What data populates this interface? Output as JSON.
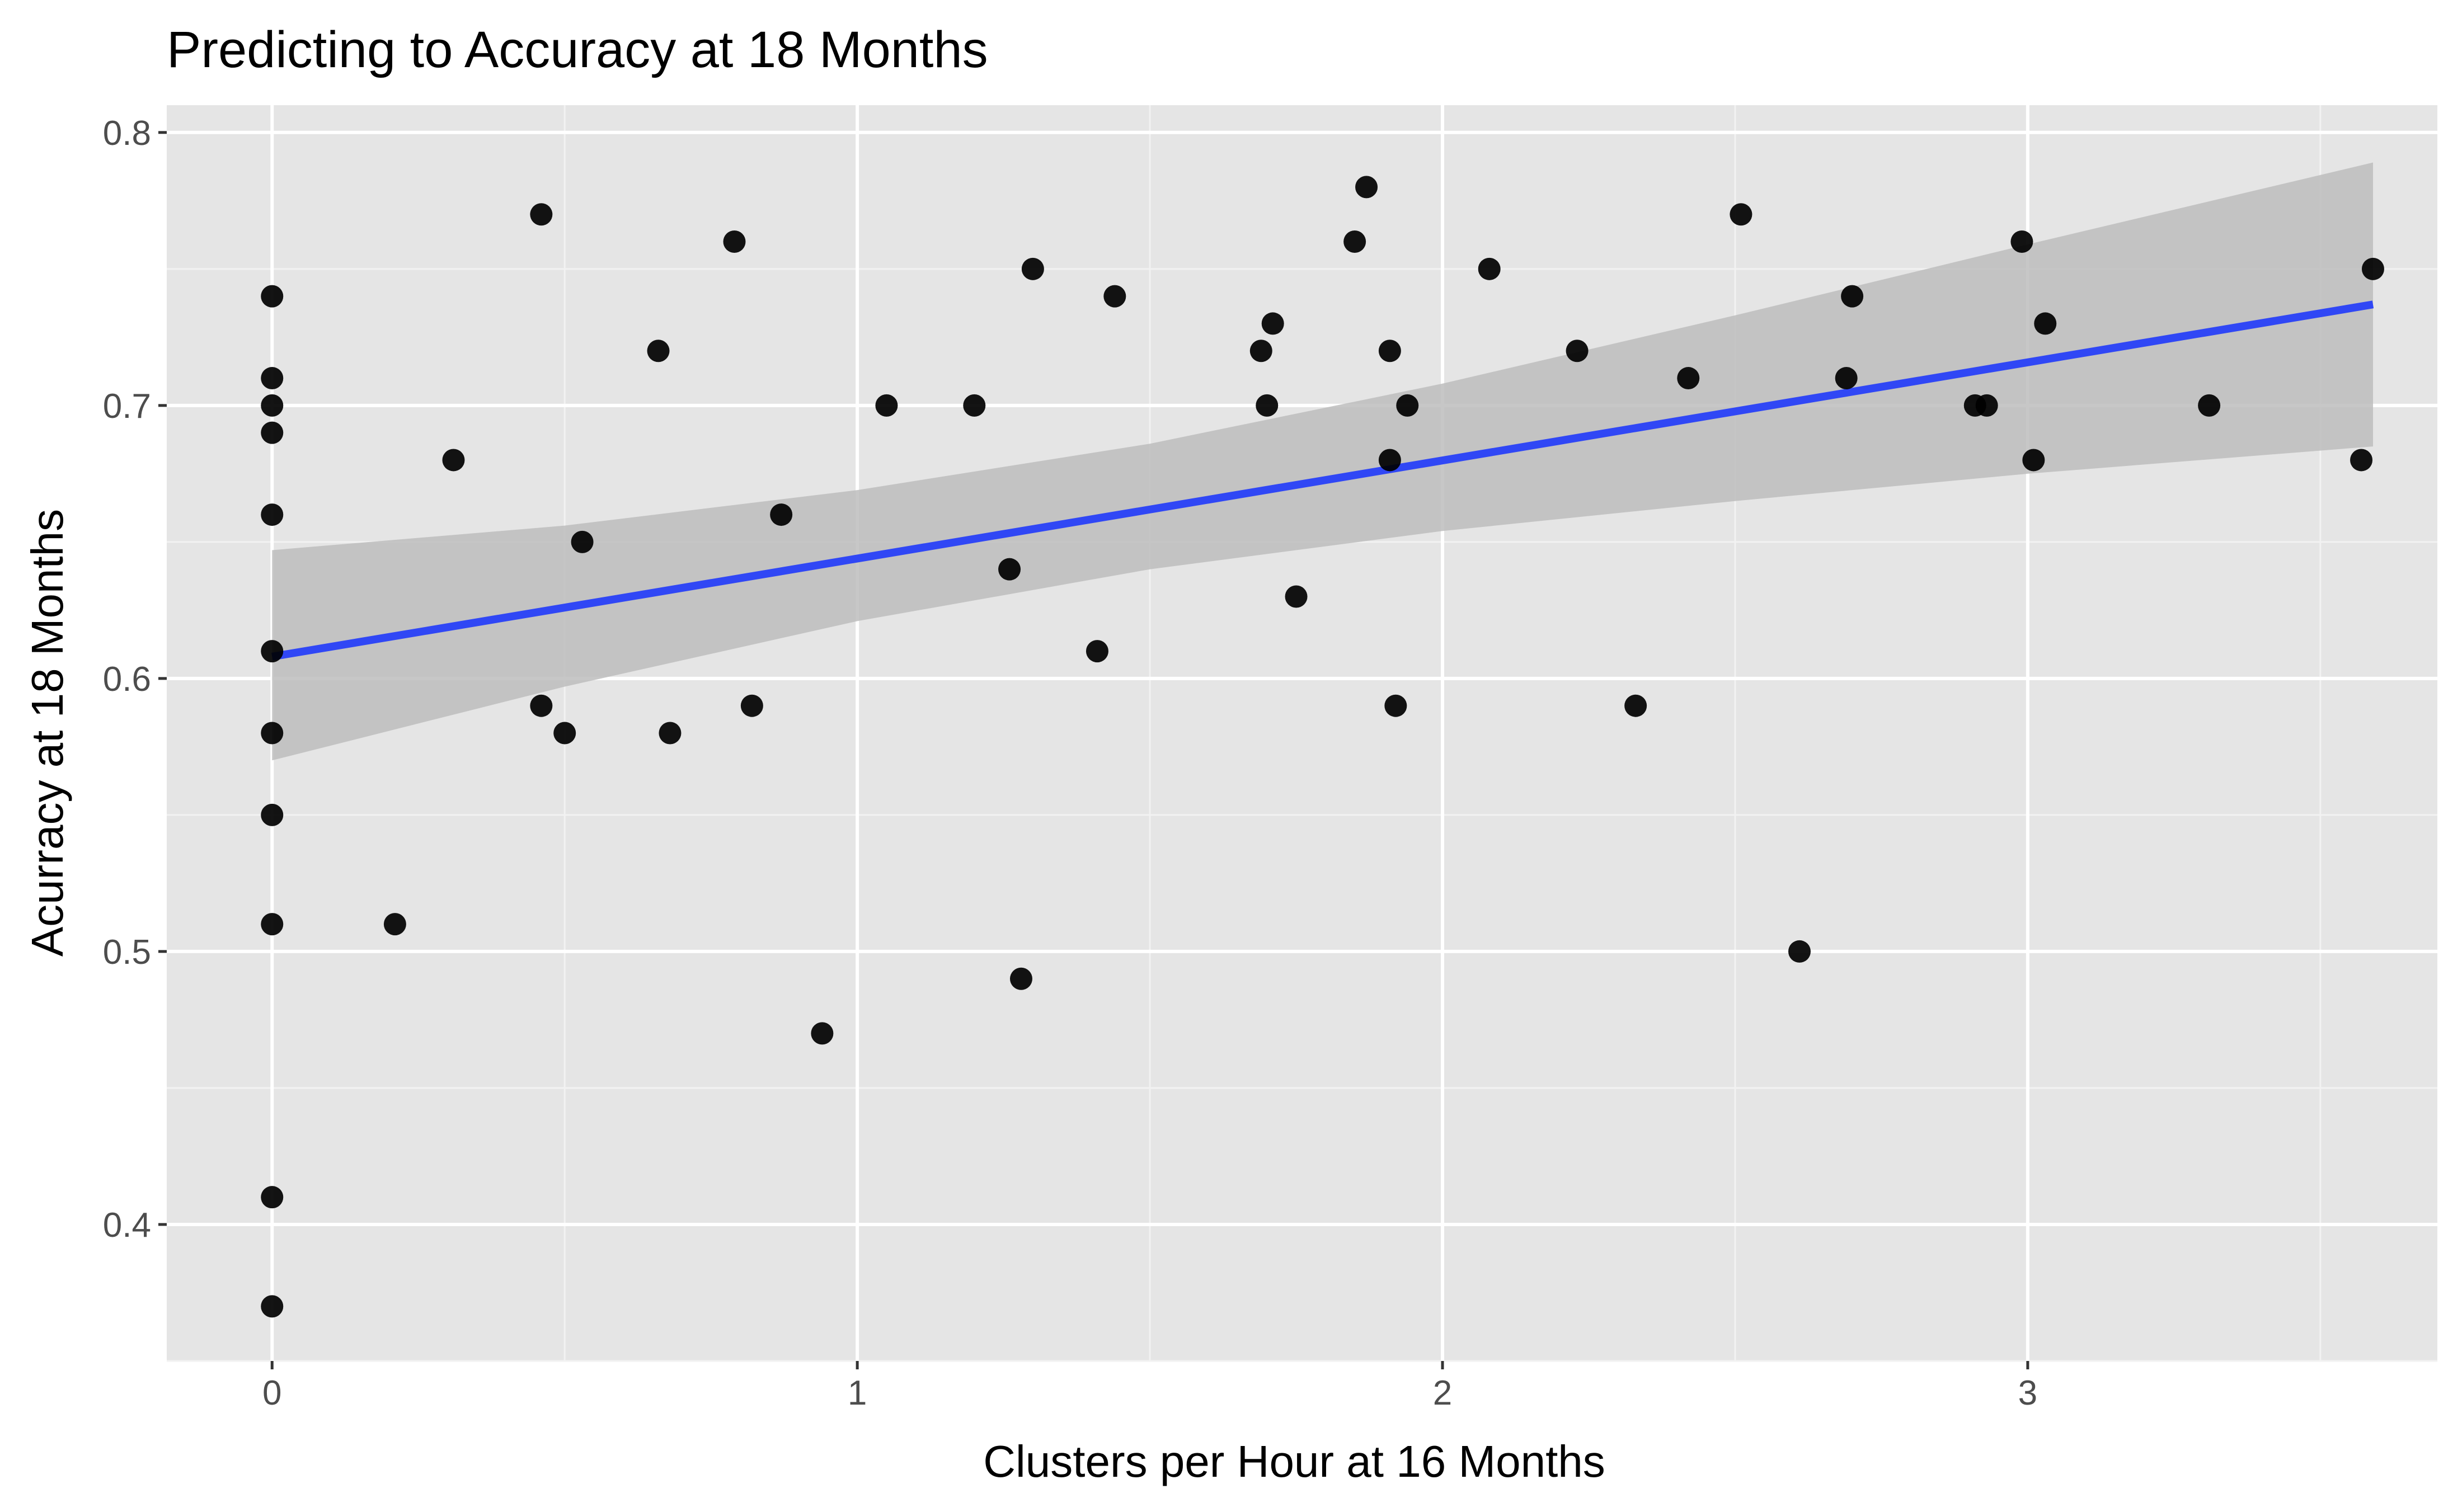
{
  "chart_data": {
    "type": "scatter",
    "title": "Predicting to Accuracy at 18 Months",
    "xlabel": "Clusters per Hour at 16 Months",
    "ylabel": "Acurracy at 18 Months",
    "xlim": [
      -0.18,
      3.7
    ],
    "ylim": [
      0.35,
      0.81
    ],
    "x_ticks": [
      0,
      1,
      2,
      3
    ],
    "x_tick_labels": [
      "0",
      "1",
      "2",
      "3"
    ],
    "y_ticks": [
      0.4,
      0.5,
      0.6,
      0.7,
      0.8
    ],
    "y_tick_labels": [
      "0.4",
      "0.5",
      "0.6",
      "0.7",
      "0.8"
    ],
    "grid": true,
    "legend": "none",
    "colors": {
      "panel": "#e5e5e5",
      "grid": "#ffffff",
      "points": "#000000",
      "fit_line": "#3047f5",
      "ribbon": "#bdbdbd"
    },
    "points": [
      {
        "x": 0,
        "y": 0.74
      },
      {
        "x": 0,
        "y": 0.71
      },
      {
        "x": 0,
        "y": 0.7
      },
      {
        "x": 0,
        "y": 0.69
      },
      {
        "x": 0,
        "y": 0.66
      },
      {
        "x": 0,
        "y": 0.61
      },
      {
        "x": 0,
        "y": 0.58
      },
      {
        "x": 0,
        "y": 0.55
      },
      {
        "x": 0,
        "y": 0.51
      },
      {
        "x": 0,
        "y": 0.41
      },
      {
        "x": 0,
        "y": 0.37
      },
      {
        "x": 0.21,
        "y": 0.51
      },
      {
        "x": 0.31,
        "y": 0.68
      },
      {
        "x": 0.46,
        "y": 0.77
      },
      {
        "x": 0.46,
        "y": 0.59
      },
      {
        "x": 0.5,
        "y": 0.58
      },
      {
        "x": 0.53,
        "y": 0.65
      },
      {
        "x": 0.66,
        "y": 0.72
      },
      {
        "x": 0.68,
        "y": 0.58
      },
      {
        "x": 0.79,
        "y": 0.76
      },
      {
        "x": 0.82,
        "y": 0.59
      },
      {
        "x": 0.87,
        "y": 0.66
      },
      {
        "x": 0.94,
        "y": 0.47
      },
      {
        "x": 1.05,
        "y": 0.7
      },
      {
        "x": 1.2,
        "y": 0.7
      },
      {
        "x": 1.26,
        "y": 0.64
      },
      {
        "x": 1.28,
        "y": 0.49
      },
      {
        "x": 1.3,
        "y": 0.75
      },
      {
        "x": 1.41,
        "y": 0.61
      },
      {
        "x": 1.44,
        "y": 0.74
      },
      {
        "x": 1.69,
        "y": 0.72
      },
      {
        "x": 1.7,
        "y": 0.7
      },
      {
        "x": 1.71,
        "y": 0.73
      },
      {
        "x": 1.75,
        "y": 0.63
      },
      {
        "x": 1.85,
        "y": 0.76
      },
      {
        "x": 1.87,
        "y": 0.78
      },
      {
        "x": 1.91,
        "y": 0.72
      },
      {
        "x": 1.91,
        "y": 0.68
      },
      {
        "x": 1.92,
        "y": 0.59
      },
      {
        "x": 1.94,
        "y": 0.7
      },
      {
        "x": 2.08,
        "y": 0.75
      },
      {
        "x": 2.23,
        "y": 0.72
      },
      {
        "x": 2.33,
        "y": 0.59
      },
      {
        "x": 2.42,
        "y": 0.71
      },
      {
        "x": 2.51,
        "y": 0.77
      },
      {
        "x": 2.61,
        "y": 0.5
      },
      {
        "x": 2.69,
        "y": 0.71
      },
      {
        "x": 2.7,
        "y": 0.74
      },
      {
        "x": 2.91,
        "y": 0.7
      },
      {
        "x": 2.93,
        "y": 0.7
      },
      {
        "x": 2.99,
        "y": 0.76
      },
      {
        "x": 3.01,
        "y": 0.68
      },
      {
        "x": 3.03,
        "y": 0.73
      },
      {
        "x": 3.31,
        "y": 0.7
      },
      {
        "x": 3.57,
        "y": 0.68
      },
      {
        "x": 3.59,
        "y": 0.75
      }
    ],
    "fit_line": {
      "x": [
        0,
        3.59
      ],
      "y": [
        0.608,
        0.737
      ]
    },
    "confidence_band": {
      "x": [
        0,
        0.5,
        1.0,
        1.5,
        2.0,
        2.5,
        3.0,
        3.59
      ],
      "lower": [
        0.57,
        0.597,
        0.621,
        0.64,
        0.654,
        0.665,
        0.675,
        0.685
      ],
      "upper": [
        0.647,
        0.656,
        0.669,
        0.686,
        0.708,
        0.733,
        0.759,
        0.789
      ]
    }
  }
}
